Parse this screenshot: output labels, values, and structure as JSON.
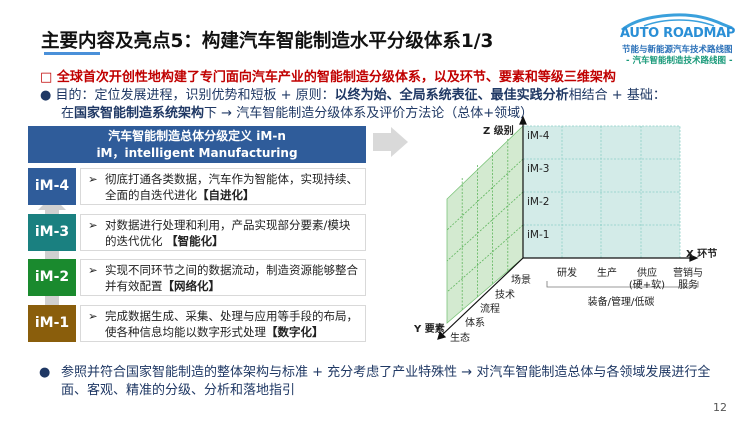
{
  "header": {
    "title": "主要内容及亮点5：构建汽车智能制造水平分级体系1/3",
    "logo": {
      "brand": "AUTO ROADMAP",
      "line1": "节能与新能源汽车技术路线图",
      "line2": "- 汽车智能制造技术路线图 -"
    }
  },
  "highlight": {
    "marker": "□",
    "text": "全球首次开创性地构建了专门面向汽车产业的智能制造分级体系，以及环节、要素和等级三维架构"
  },
  "purpose": {
    "bullet": "●",
    "a": "目的：定位发展进程，识别优势和短板 + 原则：",
    "b": "以终为始、全局系统表征、最佳实践分析",
    "c": "相结合 + 基础：",
    "d": "在",
    "e": "国家智能制造系统架构",
    "f": "下 → 汽车智能制造分级体系及评价方法论（总体+领域）"
  },
  "levels_panel": {
    "header1": "汽车智能制造总体分级定义 iM-n",
    "header2": "iM，intelligent Manufacturing",
    "levels": [
      {
        "code": "iM-4",
        "color": "#2f5c9a",
        "text": "彻底打通各类数据，汽车作为智能体，实现持续、全面的自迭代进化",
        "tag": "【自进化】"
      },
      {
        "code": "iM-3",
        "color": "#1a8080",
        "text": "对数据进行处理和利用，产品实现部分要素/模块的迭代优化 ",
        "tag": "【智能化】"
      },
      {
        "code": "iM-2",
        "color": "#1a8a2e",
        "text": "实现不同环节之间的数据流动，制造资源能够整合并有效配置",
        "tag": "【网络化】"
      },
      {
        "code": "iM-1",
        "color": "#8a5e0c",
        "text": "完成数据生成、采集、处理与应用等手段的布局，使各种信息均能以数字形式处理",
        "tag": "【数字化】"
      }
    ]
  },
  "diagram": {
    "z_axis": "Z 级别",
    "x_axis": "X 环节",
    "y_axis": "Y 要素",
    "z_levels": [
      "iM-4",
      "iM-3",
      "iM-2",
      "iM-1"
    ],
    "x_items": [
      [
        "研发",
        ""
      ],
      [
        "生产",
        ""
      ],
      [
        "供应",
        "(硬+软)"
      ],
      [
        "营销与",
        "服务"
      ]
    ],
    "x_group": "装备/管理/低碳",
    "y_items": [
      "场景",
      "技术",
      "流程",
      "体系",
      "生态"
    ]
  },
  "conclusion": {
    "bullet": "●",
    "text": "参照并符合国家智能制造的整体架构与标准 + 充分考虑了产业特殊性 → 对汽车智能制造总体与各领域发展进行全面、客观、精准的分级、分析和落地指引"
  },
  "page_number": "12"
}
